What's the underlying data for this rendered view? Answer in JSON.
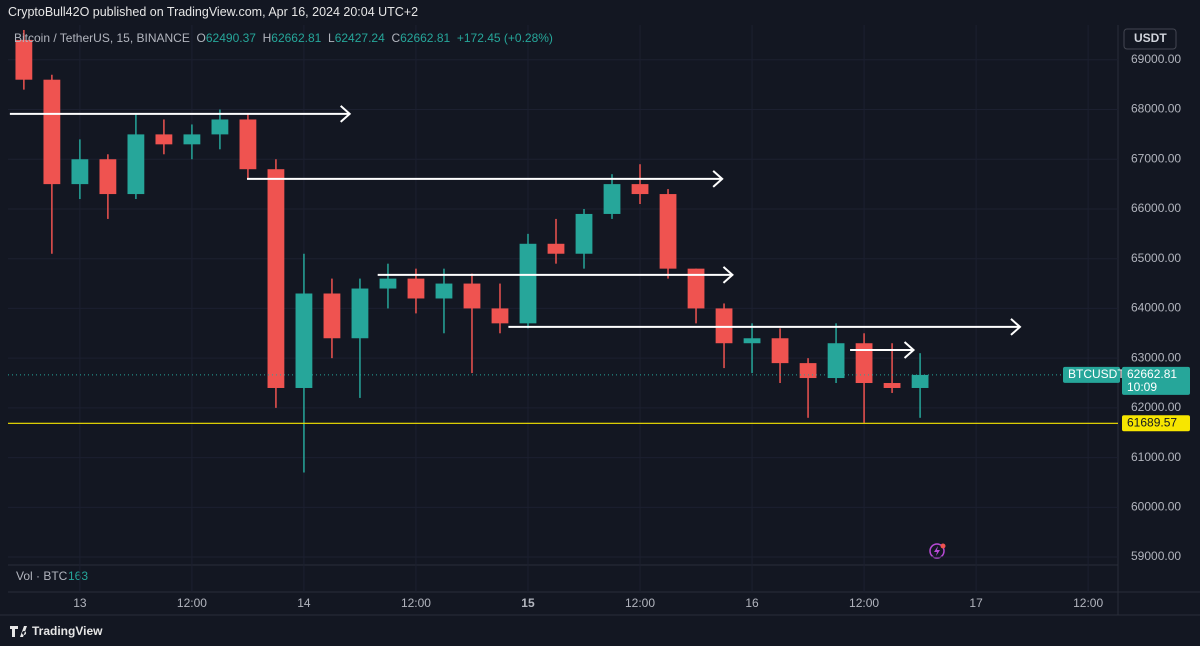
{
  "header": {
    "publisher": "CryptoBull42O published on TradingView.com, Apr 16, 2024 20:04 UTC+2"
  },
  "legend": {
    "symbol": "Bitcoin / TetherUS, 15, BINANCE",
    "o_label": "O",
    "open": 62490.37,
    "h_label": "H",
    "high": 62662.81,
    "l_label": "L",
    "low": 62427.24,
    "c_label": "C",
    "close": 62662.81,
    "change": "+172.45 (+0.28%)"
  },
  "currency_button": "USDT",
  "volume_legend": {
    "label": "Vol · BTC",
    "value": 163
  },
  "brand": "TradingView",
  "chart_data": {
    "type": "candlestick",
    "up_color": "#26a69a",
    "down_color": "#ef5350",
    "xlim": [
      -7.7,
      111.2
    ],
    "xticks": [
      {
        "value": 0,
        "label": "13"
      },
      {
        "value": 12,
        "label": "12:00"
      },
      {
        "value": 24,
        "label": "14"
      },
      {
        "value": 36,
        "label": "12:00"
      },
      {
        "value": 48,
        "label": "15"
      },
      {
        "value": 60,
        "label": "12:00"
      },
      {
        "value": 72,
        "label": "16"
      },
      {
        "value": 84,
        "label": "12:00"
      },
      {
        "value": 96,
        "label": "17"
      },
      {
        "value": 108,
        "label": "12:00"
      }
    ],
    "ylim": [
      58840,
      69700
    ],
    "yticks": [
      {
        "value": 59000,
        "label": "59000.00"
      },
      {
        "value": 60000,
        "label": "60000.00"
      },
      {
        "value": 61000,
        "label": "61000.00"
      },
      {
        "value": 62000,
        "label": "62000.00"
      },
      {
        "value": 63000,
        "label": "63000.00"
      },
      {
        "value": 64000,
        "label": "64000.00"
      },
      {
        "value": 65000,
        "label": "65000.00"
      },
      {
        "value": 66000,
        "label": "66000.00"
      },
      {
        "value": 67000,
        "label": "67000.00"
      },
      {
        "value": 68000,
        "label": "68000.00"
      },
      {
        "value": 69000,
        "label": "69000.00"
      }
    ],
    "grid": true,
    "x": [
      -6,
      -3,
      0,
      3,
      6,
      9,
      12,
      15,
      18,
      21,
      24,
      27,
      30,
      33,
      36,
      39,
      42,
      45,
      48,
      51,
      54,
      57,
      60,
      63,
      66,
      69,
      72,
      75,
      78,
      81,
      84,
      87,
      90
    ],
    "open": [
      69400,
      68600,
      66500,
      67000,
      66300,
      67500,
      67300,
      67500,
      67800,
      66800,
      62400,
      64300,
      63400,
      64400,
      64600,
      64200,
      64500,
      64000,
      63700,
      65300,
      65100,
      65900,
      66500,
      66300,
      64800,
      64000,
      63300,
      63400,
      62900,
      62600,
      63300,
      62500,
      62400
    ],
    "high": [
      69600,
      68700,
      67400,
      67100,
      67900,
      67800,
      67700,
      68000,
      67900,
      67000,
      65100,
      64600,
      64600,
      64900,
      64800,
      64800,
      64700,
      64500,
      65500,
      65800,
      66000,
      66700,
      66900,
      66400,
      64800,
      64100,
      63700,
      63600,
      63000,
      63700,
      63500,
      63300,
      63100
    ],
    "low": [
      68400,
      65100,
      66200,
      65800,
      66200,
      67100,
      67000,
      67200,
      66600,
      62000,
      60700,
      63000,
      62200,
      64000,
      63900,
      63500,
      62700,
      63500,
      63600,
      64900,
      64800,
      65800,
      66100,
      64600,
      63700,
      62800,
      62700,
      62500,
      61800,
      62500,
      61700,
      62300,
      61800
    ],
    "close": [
      68600,
      66500,
      67000,
      66300,
      67500,
      67300,
      67500,
      67800,
      66800,
      62400,
      64300,
      63400,
      64400,
      64600,
      64200,
      64500,
      64000,
      63700,
      65300,
      65100,
      65900,
      66500,
      66300,
      64800,
      64000,
      63300,
      63400,
      62900,
      62600,
      63300,
      62500,
      62400,
      62662.81
    ],
    "arrows": [
      {
        "price": 67913,
        "x_start": -7.5,
        "x_end": 28.9
      },
      {
        "price": 66606,
        "x_start": 17.9,
        "x_end": 68.8
      },
      {
        "price": 64674,
        "x_start": 31.9,
        "x_end": 69.9
      },
      {
        "price": 63628,
        "x_start": 45.9,
        "x_end": 100.7
      },
      {
        "price": 63165,
        "x_start": 82.5,
        "x_end": 89.3
      }
    ],
    "horizontal_line": {
      "price": 61689.57,
      "color": "#f7e600"
    },
    "last_price": {
      "symbol": "BTCUSDT",
      "price": 62662.81,
      "countdown": "10:09"
    }
  }
}
